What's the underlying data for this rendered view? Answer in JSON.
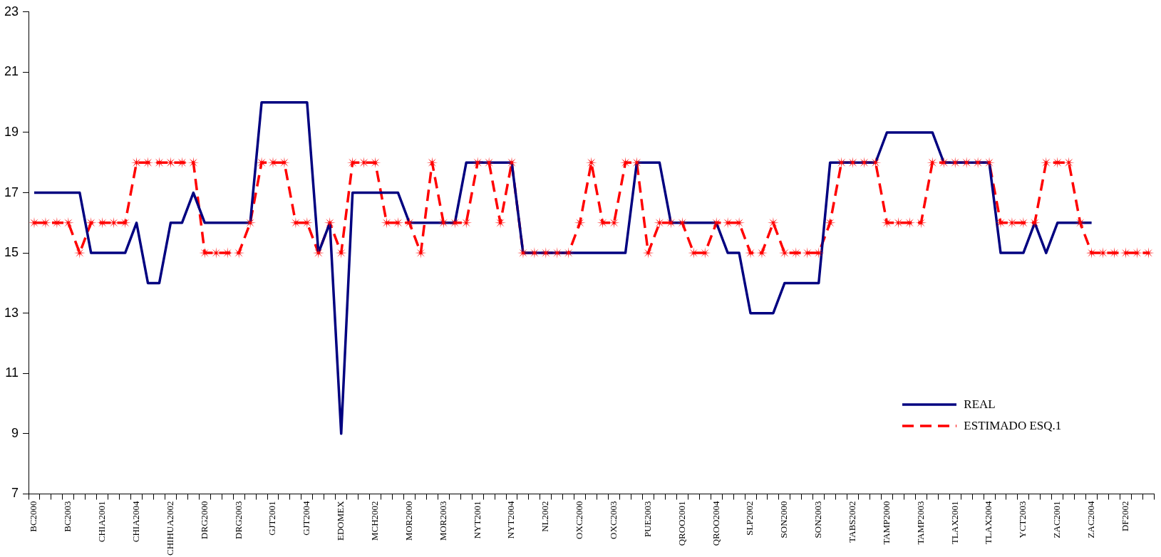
{
  "chart_data": {
    "type": "line",
    "categories": [
      "BC2000",
      null,
      null,
      "BC2003",
      null,
      null,
      "CHIA2001",
      null,
      null,
      "CHIA2004",
      null,
      null,
      "CHIHUA2002",
      null,
      null,
      "DRG2000",
      null,
      null,
      "DRG2003",
      null,
      null,
      "GJT2001",
      null,
      null,
      "GJT2004",
      null,
      null,
      "EDOMEX",
      null,
      null,
      "MCH2002",
      null,
      null,
      "MOR2000",
      null,
      null,
      "MOR2003",
      null,
      null,
      "NYT2001",
      null,
      null,
      "NYT2004",
      null,
      null,
      "NL2002",
      null,
      null,
      "OXC2000",
      null,
      null,
      "OXC2003",
      null,
      null,
      "PUE2003",
      null,
      null,
      "QROO2001",
      null,
      null,
      "QROO2004",
      null,
      null,
      "SLP2002",
      null,
      null,
      "SON2000",
      null,
      null,
      "SON2003",
      null,
      null,
      "TABS2002",
      null,
      null,
      "TAMP2000",
      null,
      null,
      "TAMP2003",
      null,
      null,
      "TLAX2001",
      null,
      null,
      "TLAX2004",
      null,
      null,
      "YCT2003",
      null,
      null,
      "ZAC2001",
      null,
      null,
      "ZAC2004",
      null,
      null,
      "DF2002",
      null,
      null
    ],
    "series": [
      {
        "name": "REAL",
        "color": "#000080",
        "marker": "none",
        "line_style": "solid",
        "values": [
          17,
          17,
          17,
          17,
          17,
          15,
          15,
          15,
          15,
          16,
          14,
          14,
          16,
          16,
          17,
          16,
          16,
          16,
          16,
          16,
          20,
          20,
          20,
          20,
          20,
          15,
          16,
          9,
          17,
          17,
          17,
          17,
          17,
          16,
          16,
          16,
          16,
          16,
          18,
          18,
          18,
          18,
          18,
          15,
          15,
          15,
          15,
          15,
          15,
          15,
          15,
          15,
          15,
          18,
          18,
          18,
          16,
          16,
          16,
          16,
          16,
          15,
          15,
          13,
          13,
          13,
          14,
          14,
          14,
          14,
          18,
          18,
          18,
          18,
          18,
          19,
          19,
          19,
          19,
          19,
          18,
          18,
          18,
          18,
          18,
          15,
          15,
          15,
          16,
          15,
          16,
          16,
          16,
          16,
          null,
          null,
          null,
          null,
          null
        ]
      },
      {
        "name": "ESTIMADO ESQ.1",
        "color": "#ff0000",
        "marker": "star",
        "line_style": "dashed",
        "values": [
          16,
          16,
          16,
          16,
          15,
          16,
          16,
          16,
          16,
          18,
          18,
          18,
          18,
          18,
          18,
          15,
          15,
          15,
          15,
          16,
          18,
          18,
          18,
          16,
          16,
          15,
          16,
          15,
          18,
          18,
          18,
          16,
          16,
          16,
          15,
          18,
          16,
          16,
          16,
          18,
          18,
          16,
          18,
          15,
          15,
          15,
          15,
          15,
          16,
          18,
          16,
          16,
          18,
          18,
          15,
          16,
          16,
          16,
          15,
          15,
          16,
          16,
          16,
          15,
          15,
          16,
          15,
          15,
          15,
          15,
          16,
          18,
          18,
          18,
          18,
          16,
          16,
          16,
          16,
          18,
          18,
          18,
          18,
          18,
          18,
          16,
          16,
          16,
          16,
          18,
          18,
          18,
          16,
          15,
          15,
          15,
          15,
          15,
          15
        ]
      }
    ],
    "ylim": [
      7,
      23
    ],
    "yticks": [
      7,
      9,
      11,
      13,
      15,
      17,
      19,
      21,
      23
    ],
    "grid": false,
    "legend": "bottom right"
  }
}
